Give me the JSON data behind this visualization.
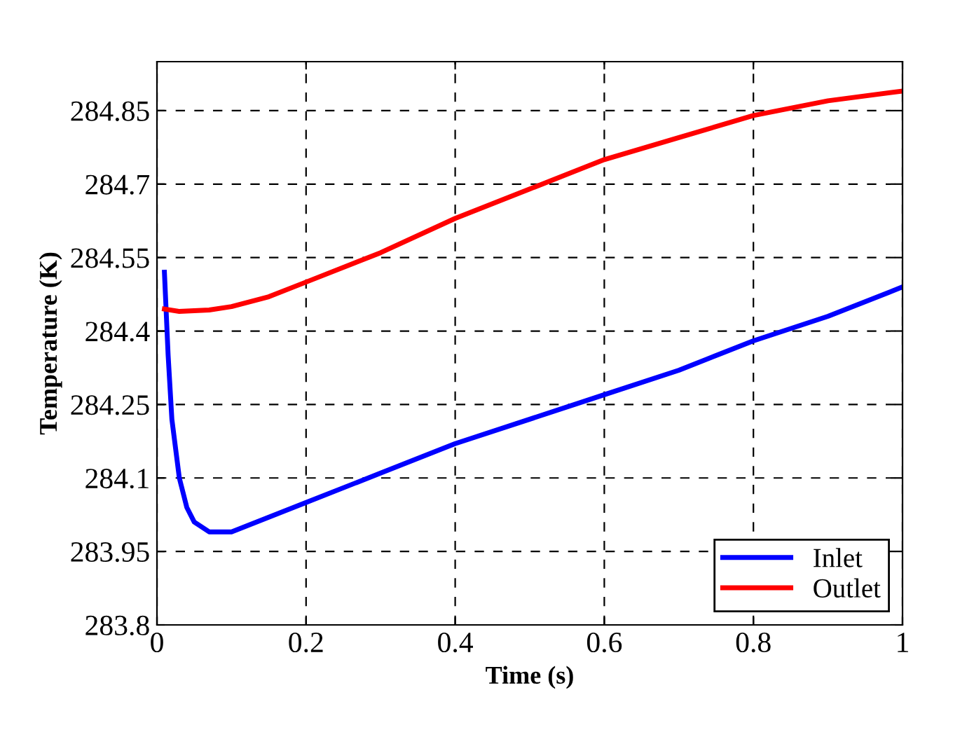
{
  "chart_data": {
    "type": "line",
    "xlabel": "Time (s)",
    "ylabel": "Temperature (K)",
    "xlim": [
      0,
      1
    ],
    "xticks": [
      0,
      0.2,
      0.4,
      0.6,
      0.8,
      1
    ],
    "ylim": [
      283.8,
      284.95
    ],
    "yticks": [
      283.8,
      283.95,
      284.1,
      284.25,
      284.4,
      284.55,
      284.7,
      284.85
    ],
    "grid": true,
    "legend": "bottom right",
    "line_style": "solid",
    "series": [
      {
        "name": "Inlet",
        "color": "#0000ff",
        "x": [
          0.01,
          0.015,
          0.02,
          0.03,
          0.04,
          0.05,
          0.06,
          0.07,
          0.08,
          0.1,
          0.15,
          0.2,
          0.3,
          0.4,
          0.5,
          0.6,
          0.7,
          0.8,
          0.9,
          1
        ],
        "values": [
          284.52,
          284.35,
          284.22,
          284.1,
          284.04,
          284.01,
          284.0,
          283.99,
          283.99,
          283.99,
          284.02,
          284.05,
          284.11,
          284.17,
          284.22,
          284.27,
          284.32,
          284.38,
          284.43,
          284.49
        ]
      },
      {
        "name": "Outlet",
        "color": "#ff0000",
        "x": [
          0.01,
          0.03,
          0.07,
          0.1,
          0.15,
          0.2,
          0.3,
          0.4,
          0.5,
          0.6,
          0.7,
          0.8,
          0.9,
          1
        ],
        "values": [
          284.445,
          284.44,
          284.443,
          284.45,
          284.47,
          284.5,
          284.56,
          284.63,
          284.69,
          284.75,
          284.795,
          284.84,
          284.87,
          284.89
        ]
      }
    ]
  }
}
